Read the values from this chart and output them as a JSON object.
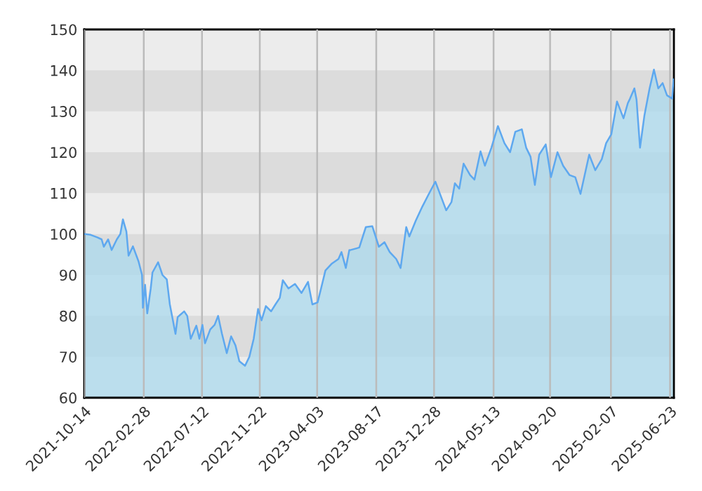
{
  "chart_data": {
    "type": "area",
    "xlim": [
      "2021-10-14",
      "2025-07-02"
    ],
    "xticks": [
      "2021-10-14",
      "2022-02-28",
      "2022-07-12",
      "2022-11-22",
      "2023-04-03",
      "2023-08-17",
      "2023-12-28",
      "2024-05-13",
      "2024-09-20",
      "2025-02-07",
      "2025-06-23"
    ],
    "ylim": [
      60,
      150
    ],
    "yticks": [
      60,
      70,
      80,
      90,
      100,
      110,
      120,
      130,
      140,
      150
    ],
    "grid": "x",
    "bands": [
      {
        "axis": "y",
        "from": 70,
        "to": 80,
        "color": "#dcdcdc"
      },
      {
        "axis": "y",
        "from": 90,
        "to": 100,
        "color": "#dcdcdc"
      },
      {
        "axis": "y",
        "from": 110,
        "to": 120,
        "color": "#dcdcdc"
      },
      {
        "axis": "y",
        "from": 130,
        "to": 140,
        "color": "#dcdcdc"
      }
    ],
    "series": [
      {
        "color": "#5ea8ef",
        "x": [
          "2021-10-16",
          "2021-10-29",
          "2021-11-13",
          "2021-11-23",
          "2021-11-28",
          "2021-12-08",
          "2021-12-16",
          "2021-12-28",
          "2022-01-05",
          "2022-01-11",
          "2022-01-19",
          "2022-01-24",
          "2022-02-03",
          "2022-02-16",
          "2022-02-24",
          "2022-02-26",
          "2022-03-03",
          "2022-03-08",
          "2022-03-16",
          "2022-03-20",
          "2022-04-02",
          "2022-04-12",
          "2022-04-22",
          "2022-04-29",
          "2022-05-12",
          "2022-05-17",
          "2022-06-01",
          "2022-06-08",
          "2022-06-16",
          "2022-06-29",
          "2022-07-06",
          "2022-07-13",
          "2022-07-19",
          "2022-07-31",
          "2022-08-10",
          "2022-08-18",
          "2022-08-27",
          "2022-09-07",
          "2022-09-17",
          "2022-09-27",
          "2022-10-06",
          "2022-10-19",
          "2022-10-29",
          "2022-11-08",
          "2022-11-18",
          "2022-11-26",
          "2022-12-06",
          "2022-12-18",
          "2022-12-28",
          "2023-01-07",
          "2023-01-14",
          "2023-01-27",
          "2023-02-11",
          "2023-02-26",
          "2023-03-13",
          "2023-03-23",
          "2023-04-04",
          "2023-04-12",
          "2023-04-22",
          "2023-05-07",
          "2023-05-22",
          "2023-05-29",
          "2023-06-08",
          "2023-06-16",
          "2023-06-19",
          "2023-07-09",
          "2023-07-24",
          "2023-08-08",
          "2023-08-23",
          "2023-09-05",
          "2023-09-17",
          "2023-10-02",
          "2023-10-12",
          "2023-10-25",
          "2023-11-01",
          "2023-11-16",
          "2023-12-01",
          "2023-12-16",
          "2023-12-31",
          "2024-01-10",
          "2024-01-25",
          "2024-02-06",
          "2024-02-14",
          "2024-02-24",
          "2024-03-05",
          "2024-03-20",
          "2024-03-30",
          "2024-04-13",
          "2024-04-23",
          "2024-05-08",
          "2024-05-23",
          "2024-06-07",
          "2024-06-20",
          "2024-07-02",
          "2024-07-17",
          "2024-07-27",
          "2024-08-06",
          "2024-08-16",
          "2024-08-26",
          "2024-09-10",
          "2024-09-22",
          "2024-10-07",
          "2024-10-20",
          "2024-11-04",
          "2024-11-17",
          "2024-11-29",
          "2024-12-19",
          "2025-01-02",
          "2025-01-17",
          "2025-01-27",
          "2025-02-08",
          "2025-02-21",
          "2025-03-08",
          "2025-03-18",
          "2025-03-23",
          "2025-04-02",
          "2025-04-07",
          "2025-04-15",
          "2025-04-25",
          "2025-05-07",
          "2025-05-17",
          "2025-05-27",
          "2025-06-06",
          "2025-06-16",
          "2025-06-28",
          "2025-07-01"
        ],
        "values": [
          100,
          99.8,
          99.2,
          98.7,
          96.9,
          98.7,
          96.1,
          98.7,
          100,
          103.6,
          100.6,
          94.7,
          97,
          93.3,
          90,
          82,
          87.6,
          80.6,
          86.7,
          90.6,
          93.1,
          90,
          88.9,
          82.8,
          75.6,
          79.7,
          81.1,
          80,
          74.4,
          77.6,
          74.4,
          77.8,
          73.3,
          76.7,
          77.8,
          80,
          75.6,
          70.9,
          75,
          72.8,
          68.9,
          67.8,
          70,
          74.4,
          81.7,
          78.9,
          82.4,
          81.1,
          82.8,
          84.4,
          88.7,
          86.7,
          87.8,
          85.6,
          88.3,
          82.8,
          83.3,
          86.7,
          91.1,
          92.8,
          93.9,
          95.6,
          91.7,
          96.1,
          96.1,
          96.7,
          101.7,
          101.9,
          96.9,
          98,
          95.6,
          93.9,
          91.7,
          101.7,
          99.4,
          103.3,
          106.7,
          109.8,
          112.8,
          110,
          105.8,
          107.8,
          112.4,
          111.1,
          117.2,
          114.4,
          113.3,
          120.2,
          116.7,
          121.1,
          126.4,
          122.2,
          120,
          125,
          125.6,
          121.1,
          118.9,
          112,
          119.4,
          121.9,
          113.9,
          120,
          116.7,
          114.4,
          113.9,
          109.8,
          119.4,
          115.6,
          118.3,
          122.2,
          124.4,
          132.4,
          128.3,
          132,
          133.1,
          135.6,
          132.8,
          121.1,
          128.9,
          135.6,
          140.2,
          135.6,
          136.9,
          133.9,
          133.1,
          137.8
        ]
      }
    ]
  }
}
